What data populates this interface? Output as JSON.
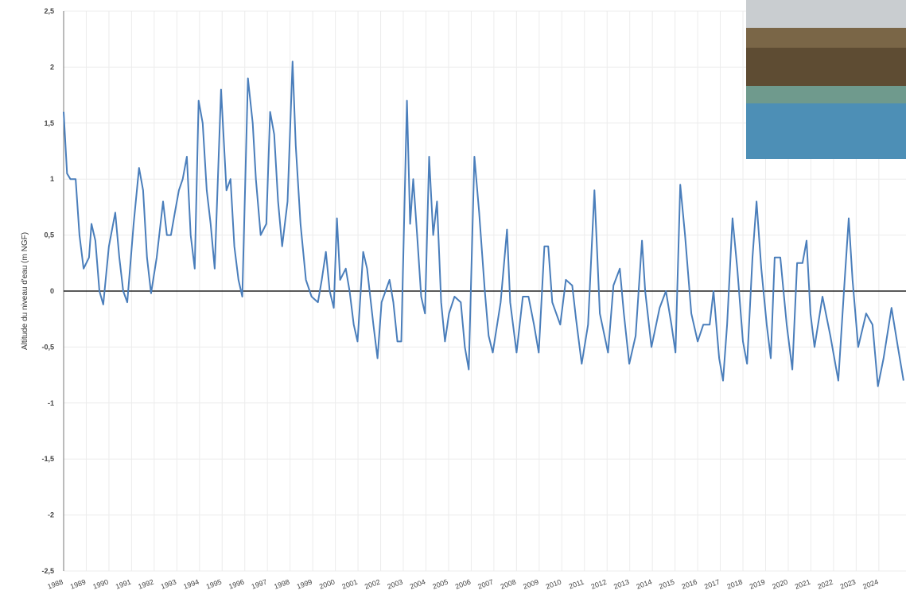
{
  "chart_data": {
    "type": "line",
    "y_label": "Altitude du niveau d'eau (m NGF)",
    "color": "#4a7ebb",
    "grid": true,
    "xlim": [
      1988,
      2025.2
    ],
    "xticks": [
      1988,
      1989,
      1990,
      1991,
      1992,
      1993,
      1994,
      1995,
      1996,
      1997,
      1998,
      1999,
      2000,
      2001,
      2002,
      2003,
      2004,
      2005,
      2006,
      2007,
      2008,
      2009,
      2010,
      2011,
      2012,
      2013,
      2014,
      2015,
      2016,
      2017,
      2018,
      2019,
      2020,
      2021,
      2022,
      2023,
      2024
    ],
    "ylim": [
      -2.5,
      2.5
    ],
    "yticks": [
      {
        "value": 2.5,
        "label": "2,5"
      },
      2,
      {
        "value": 1.5,
        "label": "1,5"
      },
      1,
      {
        "value": 0.5,
        "label": "0,5"
      },
      0,
      {
        "value": -0.5,
        "label": "-0,5"
      },
      -1,
      {
        "value": -1.5,
        "label": "-1,5"
      },
      -2,
      {
        "value": -2.5,
        "label": "-2,5"
      }
    ],
    "x": [
      1988.0,
      1988.15,
      1988.3,
      1988.53,
      1988.7,
      1988.88,
      1989.12,
      1989.23,
      1989.4,
      1989.58,
      1989.75,
      1990.0,
      1990.28,
      1990.46,
      1990.63,
      1990.81,
      1991.09,
      1991.33,
      1991.51,
      1991.68,
      1991.86,
      1992.11,
      1992.39,
      1992.56,
      1992.74,
      1992.91,
      1993.09,
      1993.26,
      1993.44,
      1993.61,
      1993.79,
      1993.96,
      1994.14,
      1994.32,
      1994.49,
      1994.67,
      1994.95,
      1995.19,
      1995.37,
      1995.54,
      1995.72,
      1995.89,
      1996.14,
      1996.35,
      1996.49,
      1996.7,
      1996.95,
      1997.12,
      1997.3,
      1997.47,
      1997.65,
      1997.89,
      1998.11,
      1998.25,
      1998.46,
      1998.7,
      1998.95,
      1999.23,
      1999.4,
      1999.58,
      1999.75,
      1999.93,
      2000.07,
      2000.21,
      2000.46,
      2000.63,
      2000.81,
      2000.98,
      2001.23,
      2001.4,
      2001.68,
      2001.86,
      2002.04,
      2002.39,
      2002.56,
      2002.74,
      2002.91,
      2003.16,
      2003.3,
      2003.44,
      2003.61,
      2003.79,
      2003.96,
      2004.14,
      2004.32,
      2004.49,
      2004.67,
      2004.84,
      2005.02,
      2005.26,
      2005.54,
      2005.72,
      2005.89,
      2006.14,
      2006.35,
      2006.6,
      2006.77,
      2006.95,
      2007.3,
      2007.58,
      2007.72,
      2008.0,
      2008.28,
      2008.53,
      2008.77,
      2008.98,
      2009.23,
      2009.4,
      2009.58,
      2009.93,
      2010.18,
      2010.46,
      2010.63,
      2010.88,
      2011.16,
      2011.44,
      2011.68,
      2012.04,
      2012.28,
      2012.56,
      2012.74,
      2012.98,
      2013.26,
      2013.54,
      2013.68,
      2013.96,
      2014.32,
      2014.6,
      2014.84,
      2015.02,
      2015.23,
      2015.44,
      2015.72,
      2016.0,
      2016.25,
      2016.53,
      2016.7,
      2016.95,
      2017.12,
      2017.3,
      2017.54,
      2017.75,
      2018.0,
      2018.18,
      2018.42,
      2018.6,
      2018.81,
      2019.05,
      2019.23,
      2019.4,
      2019.65,
      2019.93,
      2020.18,
      2020.39,
      2020.63,
      2020.81,
      2020.98,
      2021.16,
      2021.51,
      2021.86,
      2022.21,
      2022.46,
      2022.67,
      2022.84,
      2023.09,
      2023.44,
      2023.72,
      2023.96,
      2024.21,
      2024.56,
      2024.84,
      2025.09
    ],
    "values": [
      1.6,
      1.05,
      1.0,
      1.0,
      0.5,
      0.2,
      0.3,
      0.6,
      0.45,
      0.0,
      -0.12,
      0.4,
      0.7,
      0.3,
      0.0,
      -0.1,
      0.6,
      1.1,
      0.9,
      0.3,
      -0.02,
      0.3,
      0.8,
      0.5,
      0.5,
      0.7,
      0.9,
      1.0,
      1.2,
      0.5,
      0.2,
      1.7,
      1.5,
      0.9,
      0.6,
      0.2,
      1.8,
      0.9,
      1.0,
      0.4,
      0.1,
      -0.05,
      1.9,
      1.5,
      1.0,
      0.5,
      0.6,
      1.6,
      1.4,
      0.8,
      0.4,
      0.8,
      2.05,
      1.3,
      0.6,
      0.1,
      -0.05,
      -0.1,
      0.1,
      0.35,
      0.0,
      -0.15,
      0.65,
      0.1,
      0.2,
      0.0,
      -0.3,
      -0.45,
      0.35,
      0.2,
      -0.3,
      -0.6,
      -0.1,
      0.1,
      -0.1,
      -0.45,
      -0.45,
      1.7,
      0.6,
      1.0,
      0.5,
      -0.05,
      -0.2,
      1.2,
      0.5,
      0.8,
      -0.1,
      -0.45,
      -0.2,
      -0.05,
      -0.1,
      -0.5,
      -0.7,
      1.2,
      0.7,
      0.0,
      -0.4,
      -0.55,
      -0.1,
      0.55,
      -0.1,
      -0.55,
      -0.05,
      -0.05,
      -0.3,
      -0.55,
      0.4,
      0.4,
      -0.1,
      -0.3,
      0.1,
      0.05,
      -0.25,
      -0.65,
      -0.3,
      0.9,
      -0.2,
      -0.55,
      0.05,
      0.2,
      -0.2,
      -0.65,
      -0.4,
      0.45,
      0.0,
      -0.5,
      -0.15,
      0.0,
      -0.3,
      -0.55,
      0.95,
      0.5,
      -0.2,
      -0.45,
      -0.3,
      -0.3,
      0.0,
      -0.6,
      -0.8,
      -0.3,
      0.65,
      0.2,
      -0.45,
      -0.65,
      0.3,
      0.8,
      0.2,
      -0.3,
      -0.6,
      0.3,
      0.3,
      -0.3,
      -0.7,
      0.25,
      0.25,
      0.45,
      -0.2,
      -0.5,
      -0.05,
      -0.4,
      -0.8,
      0.0,
      0.65,
      0.1,
      -0.5,
      -0.2,
      -0.3,
      -0.85,
      -0.6,
      -0.15,
      -0.5,
      -0.8
    ]
  }
}
